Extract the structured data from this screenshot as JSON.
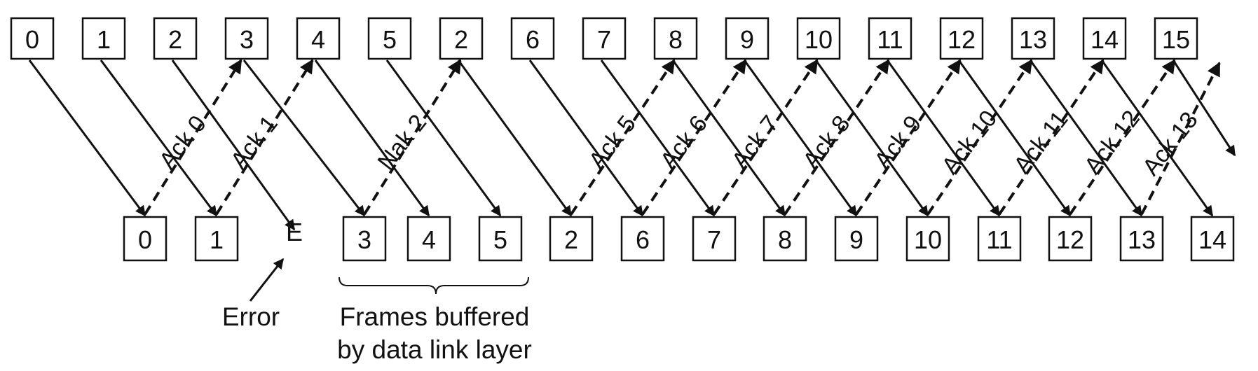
{
  "sender_frames": [
    "0",
    "1",
    "2",
    "3",
    "4",
    "5",
    "2",
    "6",
    "7",
    "8",
    "9",
    "10",
    "11",
    "12",
    "13",
    "14",
    "15"
  ],
  "receiver_frames": [
    "0",
    "1",
    "3",
    "4",
    "5",
    "2",
    "6",
    "7",
    "8",
    "9",
    "10",
    "11",
    "12",
    "13",
    "14"
  ],
  "acks": [
    "Ack 0",
    "Ack 1",
    "Nak 2",
    "Ack 5",
    "Ack 6",
    "Ack 7",
    "Ack 8",
    "Ack 9",
    "Ack 10",
    "Ack 11",
    "Ack 12",
    "Ack 13"
  ],
  "error_marker": "E",
  "error_label": "Error",
  "buffer_label_line1": "Frames buffered",
  "buffer_label_line2": "by data link layer"
}
